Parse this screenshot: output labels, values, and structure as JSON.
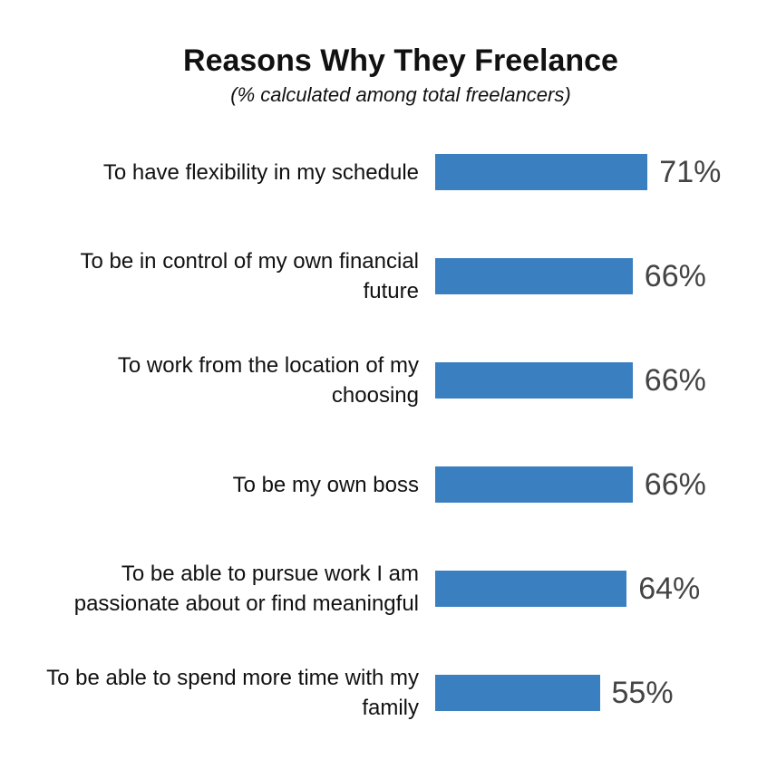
{
  "chart_data": {
    "type": "bar",
    "orientation": "horizontal",
    "title": "Reasons Why They Freelance",
    "subtitle": "(% calculated among total freelancers)",
    "categories": [
      "To have flexibility in my schedule",
      "To be in control of my own financial future",
      "To work from the location of my choosing",
      "To be my own boss",
      "To be able to pursue work I am passionate about or find meaningful",
      "To be able to spend more time with my family"
    ],
    "values": [
      71,
      66,
      66,
      66,
      64,
      55
    ],
    "value_labels": [
      "71%",
      "66%",
      "66%",
      "66%",
      "64%",
      "55%"
    ],
    "color": "#3a80c1"
  }
}
